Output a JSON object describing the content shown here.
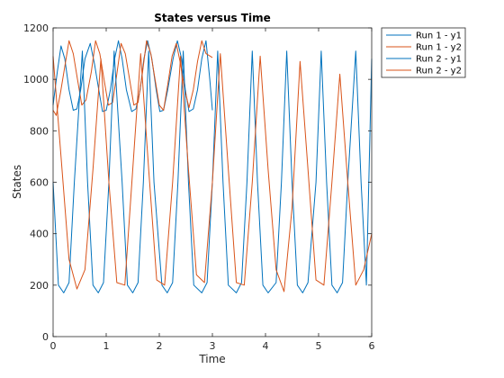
{
  "chart_data": {
    "type": "line",
    "title": "States versus Time",
    "xlabel": "Time",
    "ylabel": "States",
    "xlim": [
      0,
      6
    ],
    "ylim": [
      0,
      1200
    ],
    "xticks": [
      0,
      1,
      2,
      3,
      4,
      5,
      6
    ],
    "yticks": [
      0,
      200,
      400,
      600,
      800,
      1000,
      1200
    ],
    "grid": false,
    "legend_position": "outside-top-right",
    "series": [
      {
        "name": "Run 1 - y1",
        "color": "#0072BD",
        "x": [
          0,
          0.08,
          0.15,
          0.22,
          0.3,
          0.38,
          0.45,
          0.52,
          0.6,
          0.7,
          0.78,
          0.86,
          0.93,
          1.0,
          1.08,
          1.16,
          1.23,
          1.3,
          1.38,
          1.48,
          1.56,
          1.64,
          1.71,
          1.78,
          1.86,
          1.94,
          2.01,
          2.08,
          2.16,
          2.26,
          2.34,
          2.42,
          2.49,
          2.56,
          2.64,
          2.72,
          2.8,
          2.88,
          2.95,
          3.0
        ],
        "y": [
          900,
          1030,
          1130,
          1080,
          960,
          880,
          885,
          960,
          1080,
          1140,
          1060,
          960,
          875,
          880,
          960,
          1080,
          1150,
          1080,
          960,
          875,
          885,
          960,
          1080,
          1150,
          1080,
          960,
          875,
          880,
          960,
          1080,
          1150,
          1080,
          960,
          875,
          885,
          960,
          1080,
          1150,
          1000,
          880
        ]
      },
      {
        "name": "Run 1 - y2",
        "color": "#D95319",
        "x": [
          0,
          0.06,
          0.14,
          0.22,
          0.3,
          0.38,
          0.46,
          0.54,
          0.62,
          0.72,
          0.8,
          0.88,
          0.96,
          1.04,
          1.12,
          1.2,
          1.28,
          1.36,
          1.44,
          1.52,
          1.6,
          1.68,
          1.76,
          1.84,
          1.92,
          2.0,
          2.08,
          2.16,
          2.24,
          2.32,
          2.4,
          2.48,
          2.56,
          2.64,
          2.72,
          2.8,
          2.88,
          2.96,
          3.0
        ],
        "y": [
          880,
          860,
          950,
          1050,
          1150,
          1100,
          1000,
          900,
          920,
          1030,
          1150,
          1100,
          1000,
          900,
          910,
          1020,
          1140,
          1100,
          1000,
          900,
          910,
          1020,
          1150,
          1100,
          1000,
          900,
          880,
          980,
          1090,
          1140,
          1060,
          960,
          890,
          960,
          1070,
          1150,
          1100,
          1090,
          1085
        ]
      },
      {
        "name": "Run 2 - y1",
        "color": "#0072BD",
        "x": [
          0,
          0.1,
          0.2,
          0.3,
          0.4,
          0.55,
          0.65,
          0.75,
          0.85,
          0.95,
          1.05,
          1.15,
          1.3,
          1.4,
          1.5,
          1.6,
          1.7,
          1.8,
          1.9,
          2.05,
          2.15,
          2.25,
          2.35,
          2.45,
          2.55,
          2.65,
          2.8,
          2.9,
          3.0,
          3.1,
          3.2,
          3.3,
          3.45,
          3.55,
          3.65,
          3.75,
          3.85,
          3.95,
          4.05,
          4.2,
          4.3,
          4.4,
          4.5,
          4.6,
          4.7,
          4.8,
          4.95,
          5.05,
          5.15,
          5.25,
          5.35,
          5.45,
          5.55,
          5.7,
          5.8,
          5.9,
          6.0
        ],
        "y": [
          600,
          200,
          170,
          210,
          600,
          1110,
          600,
          200,
          170,
          210,
          600,
          1110,
          600,
          200,
          170,
          210,
          600,
          1110,
          600,
          200,
          170,
          210,
          600,
          1110,
          600,
          200,
          170,
          210,
          600,
          1110,
          600,
          200,
          170,
          210,
          600,
          1110,
          600,
          200,
          170,
          210,
          600,
          1110,
          600,
          200,
          170,
          210,
          600,
          1110,
          600,
          200,
          170,
          210,
          600,
          1110,
          600,
          200,
          1080
        ]
      },
      {
        "name": "Run 2 - y2",
        "color": "#D95319",
        "x": [
          0,
          0.15,
          0.3,
          0.45,
          0.6,
          0.75,
          0.9,
          1.05,
          1.2,
          1.35,
          1.5,
          1.65,
          1.8,
          1.95,
          2.1,
          2.25,
          2.4,
          2.55,
          2.7,
          2.85,
          3.0,
          3.15,
          3.3,
          3.45,
          3.6,
          3.75,
          3.9,
          4.05,
          4.2,
          4.35,
          4.5,
          4.65,
          4.8,
          4.95,
          5.1,
          5.25,
          5.4,
          5.55,
          5.7,
          5.85,
          6.0
        ],
        "y": [
          1090,
          700,
          300,
          185,
          260,
          650,
          1080,
          600,
          210,
          200,
          650,
          1100,
          650,
          220,
          200,
          600,
          1090,
          650,
          240,
          210,
          600,
          1100,
          650,
          210,
          200,
          600,
          1090,
          650,
          260,
          175,
          500,
          1070,
          650,
          220,
          200,
          600,
          1020,
          600,
          200,
          260,
          400
        ]
      }
    ]
  }
}
